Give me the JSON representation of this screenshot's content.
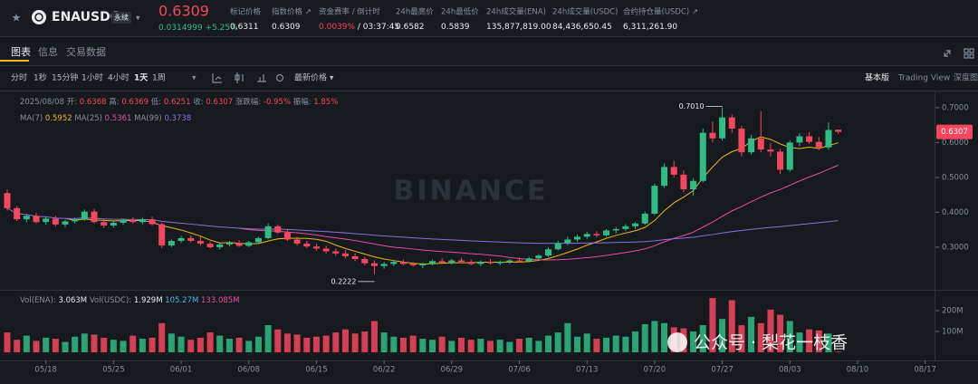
{
  "header": {
    "symbol": "ENAUSDC",
    "contract": "永续",
    "price": "0.6309",
    "change": "0.0314999",
    "change_pct": "+5.25%",
    "stats": [
      {
        "label": "标记价格",
        "value": "0.6311"
      },
      {
        "label": "指数价格 ↗",
        "value": "0.6309"
      },
      {
        "label": "资金费率 / 倒计时",
        "value": "0.0039%",
        "value2": " / 03:37:45"
      },
      {
        "label": "24h最高价",
        "value": "0.6582"
      },
      {
        "label": "24h最低价",
        "value": "0.5839"
      },
      {
        "label": "24h成交量(ENA)",
        "value": "135,877,819.00"
      },
      {
        "label": "24h成交量(USDC)",
        "value": "84,436,650.45"
      },
      {
        "label": "合约持仓量(USDC) ↗",
        "value": "6,311,261.90"
      }
    ]
  },
  "tabs": [
    "图表",
    "信息",
    "交易数据"
  ],
  "toolbar": {
    "intervals": [
      "分时",
      "1秒",
      "15分钟",
      "1小时",
      "4小时",
      "1天",
      "1周"
    ],
    "price_type": "最新价格 ▾",
    "views": [
      "基本版",
      "Trading View",
      "深度图"
    ]
  },
  "chart_data": {
    "type": "candlestick",
    "up_color": "#2ebd85",
    "down_color": "#f6465d",
    "info": {
      "date": "2025/08/08",
      "open_label": "开:",
      "high_label": "高:",
      "low_label": "低:",
      "close_label": "收:",
      "change_label": "涨跌幅:",
      "change": "-0.95%",
      "amplitude_label": "振幅:",
      "amplitude": "1.85%"
    },
    "ma": [
      {
        "name": "MA(7)",
        "color": "#f0b90b",
        "value": 0.5952
      },
      {
        "name": "MA(25)",
        "color": "#e84fa1",
        "value": 0.5361
      },
      {
        "name": "MA(99)",
        "color": "#8b6fe0",
        "value": 0.3738
      }
    ],
    "categories": [
      "05/14",
      "05/15",
      "05/16",
      "05/17",
      "05/18",
      "05/19",
      "05/20",
      "05/21",
      "05/22",
      "05/23",
      "05/24",
      "05/25",
      "05/26",
      "05/27",
      "05/28",
      "05/29",
      "05/30",
      "05/31",
      "06/01",
      "06/02",
      "06/03",
      "06/04",
      "06/05",
      "06/06",
      "06/07",
      "06/08",
      "06/09",
      "06/10",
      "06/11",
      "06/12",
      "06/13",
      "06/14",
      "06/15",
      "06/16",
      "06/17",
      "06/18",
      "06/19",
      "06/20",
      "06/21",
      "06/22",
      "06/23",
      "06/24",
      "06/25",
      "06/26",
      "06/27",
      "06/28",
      "06/29",
      "06/30",
      "07/01",
      "07/02",
      "07/03",
      "07/04",
      "07/05",
      "07/06",
      "07/07",
      "07/08",
      "07/09",
      "07/10",
      "07/11",
      "07/12",
      "07/13",
      "07/14",
      "07/15",
      "07/16",
      "07/17",
      "07/18",
      "07/19",
      "07/20",
      "07/21",
      "07/22",
      "07/23",
      "07/24",
      "07/25",
      "07/26",
      "07/27",
      "07/28",
      "07/29",
      "07/30",
      "07/31",
      "08/01",
      "08/02",
      "08/03",
      "08/04",
      "08/05",
      "08/06",
      "08/07",
      "08/08"
    ],
    "open": [
      0.455,
      0.412,
      0.38,
      0.39,
      0.372,
      0.382,
      0.365,
      0.374,
      0.38,
      0.402,
      0.372,
      0.362,
      0.37,
      0.378,
      0.372,
      0.38,
      0.366,
      0.305,
      0.318,
      0.326,
      0.318,
      0.31,
      0.3,
      0.308,
      0.312,
      0.304,
      0.314,
      0.326,
      0.36,
      0.342,
      0.322,
      0.31,
      0.302,
      0.296,
      0.288,
      0.282,
      0.274,
      0.266,
      0.254,
      0.246,
      0.252,
      0.258,
      0.252,
      0.248,
      0.252,
      0.26,
      0.256,
      0.262,
      0.258,
      0.252,
      0.258,
      0.254,
      0.258,
      0.262,
      0.26,
      0.268,
      0.276,
      0.294,
      0.312,
      0.322,
      0.33,
      0.338,
      0.334,
      0.348,
      0.352,
      0.36,
      0.368,
      0.396,
      0.476,
      0.53,
      0.508,
      0.466,
      0.49,
      0.628,
      0.612,
      0.672,
      0.64,
      0.572,
      0.612,
      0.58,
      0.574,
      0.522,
      0.6,
      0.618,
      0.602,
      0.586,
      0.6368
    ],
    "high": [
      0.465,
      0.418,
      0.395,
      0.398,
      0.386,
      0.39,
      0.378,
      0.385,
      0.408,
      0.41,
      0.38,
      0.375,
      0.382,
      0.386,
      0.384,
      0.388,
      0.37,
      0.322,
      0.332,
      0.334,
      0.33,
      0.316,
      0.312,
      0.318,
      0.32,
      0.318,
      0.33,
      0.368,
      0.364,
      0.35,
      0.33,
      0.318,
      0.31,
      0.304,
      0.296,
      0.292,
      0.282,
      0.272,
      0.262,
      0.258,
      0.262,
      0.264,
      0.258,
      0.256,
      0.264,
      0.268,
      0.266,
      0.27,
      0.264,
      0.262,
      0.266,
      0.262,
      0.266,
      0.27,
      0.272,
      0.28,
      0.3,
      0.318,
      0.33,
      0.336,
      0.344,
      0.346,
      0.352,
      0.358,
      0.366,
      0.372,
      0.402,
      0.482,
      0.54,
      0.548,
      0.52,
      0.498,
      0.64,
      0.66,
      0.701,
      0.68,
      0.648,
      0.622,
      0.69,
      0.598,
      0.582,
      0.606,
      0.626,
      0.63,
      0.616,
      0.658,
      0.6369
    ],
    "low": [
      0.405,
      0.375,
      0.372,
      0.368,
      0.365,
      0.36,
      0.358,
      0.368,
      0.376,
      0.368,
      0.355,
      0.356,
      0.364,
      0.368,
      0.366,
      0.362,
      0.298,
      0.3,
      0.312,
      0.314,
      0.305,
      0.296,
      0.294,
      0.302,
      0.3,
      0.3,
      0.308,
      0.322,
      0.338,
      0.318,
      0.305,
      0.298,
      0.29,
      0.282,
      0.276,
      0.268,
      0.26,
      0.248,
      0.2222,
      0.238,
      0.246,
      0.248,
      0.244,
      0.24,
      0.248,
      0.252,
      0.25,
      0.254,
      0.248,
      0.246,
      0.25,
      0.248,
      0.252,
      0.256,
      0.256,
      0.262,
      0.272,
      0.29,
      0.306,
      0.316,
      0.324,
      0.328,
      0.33,
      0.34,
      0.346,
      0.352,
      0.364,
      0.392,
      0.47,
      0.5,
      0.458,
      0.448,
      0.486,
      0.6,
      0.606,
      0.628,
      0.56,
      0.566,
      0.572,
      0.56,
      0.51,
      0.516,
      0.59,
      0.596,
      0.578,
      0.58,
      0.6251
    ],
    "close": [
      0.412,
      0.38,
      0.39,
      0.372,
      0.382,
      0.365,
      0.374,
      0.38,
      0.402,
      0.372,
      0.362,
      0.37,
      0.378,
      0.372,
      0.38,
      0.366,
      0.305,
      0.318,
      0.326,
      0.318,
      0.31,
      0.3,
      0.308,
      0.312,
      0.304,
      0.314,
      0.326,
      0.36,
      0.342,
      0.322,
      0.31,
      0.302,
      0.296,
      0.288,
      0.282,
      0.274,
      0.266,
      0.254,
      0.246,
      0.252,
      0.258,
      0.252,
      0.248,
      0.252,
      0.26,
      0.256,
      0.262,
      0.258,
      0.252,
      0.258,
      0.254,
      0.258,
      0.262,
      0.26,
      0.268,
      0.276,
      0.294,
      0.312,
      0.322,
      0.33,
      0.338,
      0.334,
      0.348,
      0.352,
      0.36,
      0.368,
      0.396,
      0.476,
      0.53,
      0.508,
      0.466,
      0.49,
      0.628,
      0.612,
      0.672,
      0.64,
      0.572,
      0.612,
      0.58,
      0.574,
      0.522,
      0.6,
      0.618,
      0.602,
      0.586,
      0.636,
      0.6307
    ],
    "volume": [
      95000000,
      60000000,
      80000000,
      55000000,
      70000000,
      65000000,
      50000000,
      75000000,
      90000000,
      85000000,
      70000000,
      60000000,
      55000000,
      80000000,
      65000000,
      70000000,
      140000000,
      90000000,
      75000000,
      60000000,
      70000000,
      95000000,
      80000000,
      65000000,
      70000000,
      55000000,
      75000000,
      130000000,
      110000000,
      90000000,
      85000000,
      70000000,
      75000000,
      80000000,
      95000000,
      110000000,
      90000000,
      100000000,
      150000000,
      95000000,
      75000000,
      70000000,
      80000000,
      65000000,
      60000000,
      75000000,
      55000000,
      70000000,
      60000000,
      65000000,
      55000000,
      60000000,
      50000000,
      65000000,
      70000000,
      55000000,
      80000000,
      95000000,
      140000000,
      75000000,
      90000000,
      65000000,
      70000000,
      80000000,
      75000000,
      100000000,
      135000000,
      150000000,
      140000000,
      120000000,
      115000000,
      100000000,
      130000000,
      260000000,
      160000000,
      250000000,
      130000000,
      170000000,
      140000000,
      205000000,
      180000000,
      150000000,
      95000000,
      110000000,
      105000000,
      90000000,
      3063000
    ],
    "annotations": [
      {
        "value": 0.701,
        "label": "0.7010"
      },
      {
        "value": 0.2222,
        "label": "0.2222"
      }
    ],
    "ylim": [
      0.183,
      0.749
    ],
    "yticks": [
      {
        "value": 0.7,
        "label": "0.7000"
      },
      {
        "value": 0.6,
        "label": "0.6000"
      },
      {
        "value": 0.5,
        "label": "0.5000"
      },
      {
        "value": 0.4,
        "label": "0.4000"
      },
      {
        "value": 0.3,
        "label": "0.3000"
      }
    ],
    "vol_ylim": [
      0,
      278000000
    ],
    "vol_yticks": [
      {
        "value": 200000000,
        "label": "200M"
      },
      {
        "value": 100000000,
        "label": "100M"
      }
    ],
    "vol_legend": {
      "ena_label": "Vol(ENA):",
      "ena": "3.063M",
      "usdc_label": "Vol(USDC):",
      "usdc": "1.929M",
      "ma1": "105.27M",
      "ma2": "133.085M"
    },
    "xticks": [
      "05/18",
      "05/25",
      "06/01",
      "06/08",
      "06/15",
      "06/22",
      "06/29",
      "07/06",
      "07/13",
      "07/20",
      "07/27",
      "08/03",
      "08/10",
      "08/17"
    ],
    "watermark": "BINANCE"
  },
  "overlay": "公众号 · 梨花一枝香"
}
